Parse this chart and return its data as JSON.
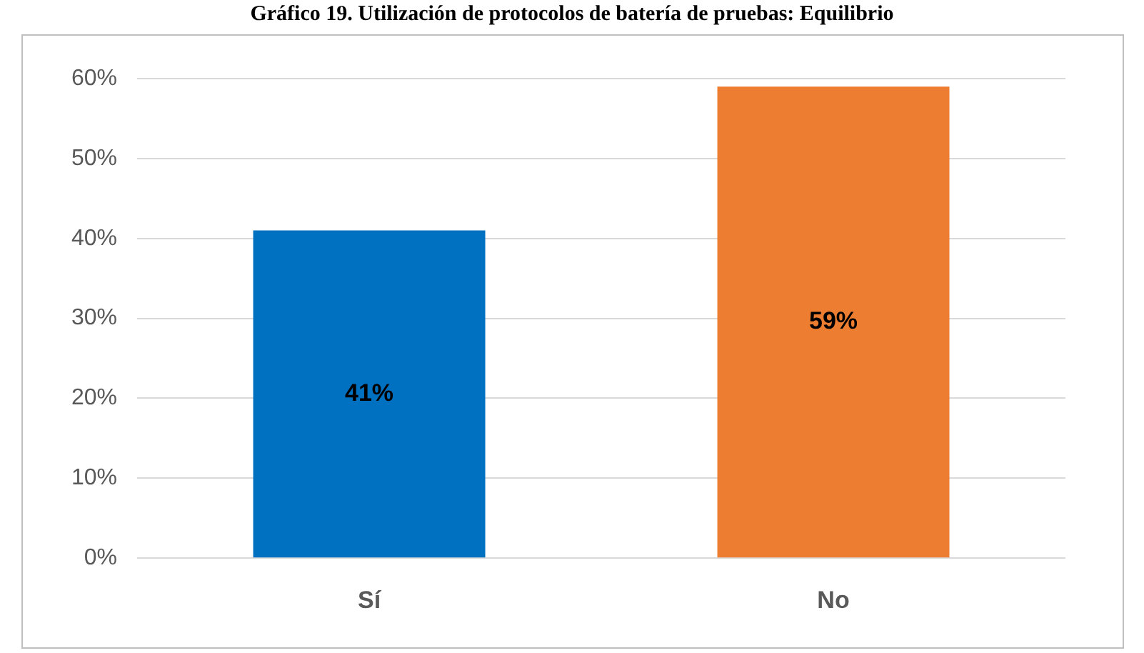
{
  "chart_data": {
    "type": "bar",
    "title": "Gráfico 19. Utilización de protocolos de batería de pruebas: Equilibrio",
    "categories": [
      "Sí",
      "No"
    ],
    "series": [
      {
        "colors": [
          "#0070c0",
          "#ed7d31"
        ],
        "values": [
          41,
          59
        ],
        "value_labels": [
          "41%",
          "59%"
        ]
      }
    ],
    "ylim": [
      0,
      60
    ],
    "yticks": [
      {
        "value": 0,
        "label": "0%"
      },
      {
        "value": 10,
        "label": "10%"
      },
      {
        "value": 20,
        "label": "20%"
      },
      {
        "value": 30,
        "label": "30%"
      },
      {
        "value": 40,
        "label": "40%"
      },
      {
        "value": 50,
        "label": "50%"
      },
      {
        "value": 60,
        "label": "60%"
      }
    ],
    "grid": "y",
    "legend": false
  }
}
